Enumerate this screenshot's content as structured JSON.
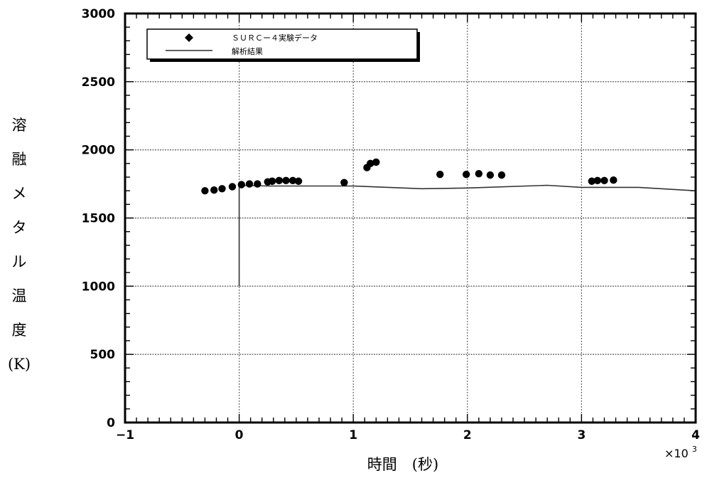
{
  "chart_data": {
    "type": "scatter",
    "x_axis": {
      "range": [
        -1,
        4
      ],
      "ticks": [
        -1,
        0,
        1,
        2,
        3,
        4
      ],
      "tick_labels": [
        "−1",
        "0",
        "1",
        "2",
        "3",
        "4"
      ],
      "label": "時間　(秒)",
      "multiplier_label": "×10",
      "multiplier_exponent": "3"
    },
    "y_axis": {
      "range": [
        0,
        3000
      ],
      "ticks": [
        0,
        500,
        1000,
        1500,
        2000,
        2500,
        3000
      ],
      "tick_labels": [
        "0",
        "500",
        "1000",
        "1500",
        "2000",
        "2500",
        "3000"
      ],
      "label": "溶融メタル温度(K)"
    },
    "grid": true,
    "legend_position": "top-left",
    "series": [
      {
        "name": "ＳＵＲＣー４実験データ",
        "kind": "markers",
        "x": [
          -0.3,
          -0.22,
          -0.15,
          -0.06,
          0.02,
          0.09,
          0.16,
          0.25,
          0.29,
          0.35,
          0.41,
          0.47,
          0.52,
          0.92,
          1.12,
          1.15,
          1.2,
          1.76,
          1.99,
          2.1,
          2.2,
          2.3,
          3.09,
          3.14,
          3.2,
          3.28
        ],
        "y": [
          1700,
          1705,
          1715,
          1730,
          1745,
          1750,
          1750,
          1765,
          1770,
          1775,
          1775,
          1775,
          1770,
          1760,
          1870,
          1900,
          1910,
          1820,
          1820,
          1825,
          1815,
          1815,
          1770,
          1775,
          1775,
          1778
        ]
      },
      {
        "name": "解析結果",
        "kind": "line",
        "x": [
          0,
          0,
          0.25,
          1.0,
          1.6,
          2.0,
          2.7,
          3.0,
          3.5,
          4.0
        ],
        "y": [
          1000,
          1740,
          1735,
          1735,
          1715,
          1720,
          1740,
          1725,
          1725,
          1700
        ]
      }
    ]
  },
  "colors": {
    "markers": "#000000",
    "line": "#333333",
    "grid": "#666666"
  }
}
